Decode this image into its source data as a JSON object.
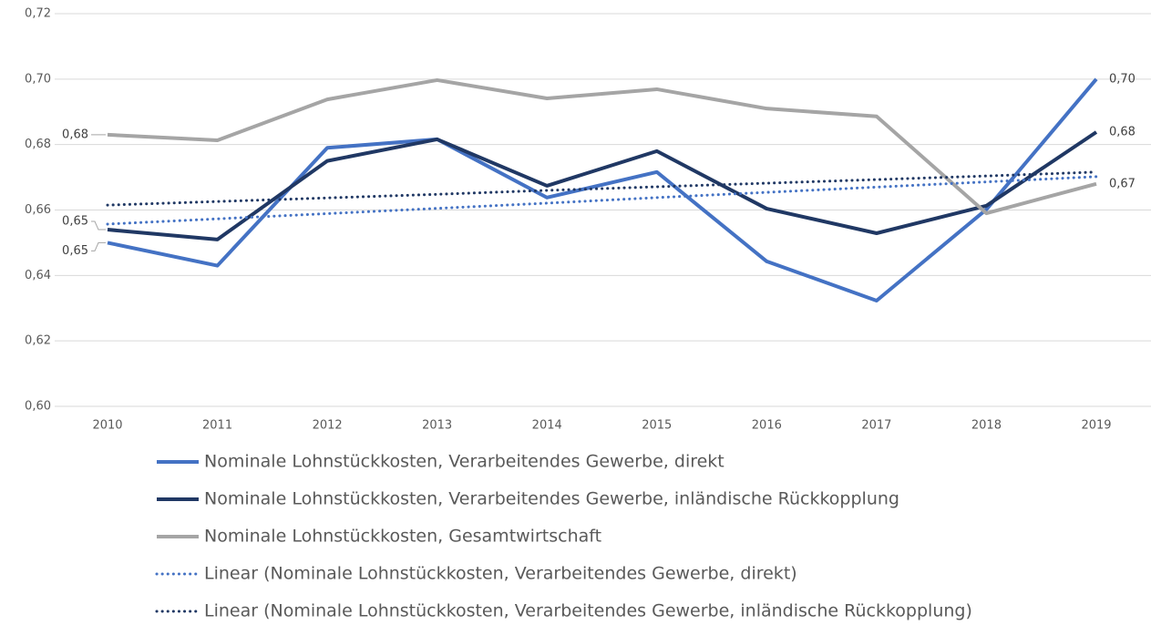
{
  "chart_data": {
    "type": "line",
    "categories": [
      "2010",
      "2011",
      "2012",
      "2013",
      "2014",
      "2015",
      "2016",
      "2017",
      "2018",
      "2019"
    ],
    "series": [
      {
        "name": "Nominale Lohnstückkosten, Verarbeitendes Gewerbe, direkt",
        "color": "#4472c4",
        "style": "solid",
        "values": [
          0.65,
          0.643,
          0.679,
          0.6816,
          0.6638,
          0.6716,
          0.6443,
          0.6323,
          0.6602,
          0.7
        ],
        "value_labels": [
          "0,65",
          null,
          null,
          null,
          null,
          null,
          null,
          null,
          null,
          "0,70"
        ]
      },
      {
        "name": "Nominale Lohnstückkosten, Verarbeitendes Gewerbe, inländische Rückkopplung",
        "color": "#203864",
        "style": "solid",
        "values": [
          0.654,
          0.651,
          0.675,
          0.6816,
          0.6674,
          0.678,
          0.6604,
          0.6529,
          0.6613,
          0.6838
        ],
        "value_labels": [
          "0,65",
          null,
          null,
          null,
          null,
          null,
          null,
          null,
          null,
          "0,68"
        ]
      },
      {
        "name": "Nominale Lohnstückkosten, Gesamtwirtschaft",
        "color": "#a5a5a5",
        "style": "solid",
        "values": [
          0.683,
          0.6813,
          0.6938,
          0.6997,
          0.6941,
          0.6969,
          0.691,
          0.6886,
          0.659,
          0.668
        ],
        "value_labels": [
          "0,68",
          null,
          null,
          null,
          null,
          null,
          null,
          null,
          null,
          "0,67"
        ]
      },
      {
        "name": "Linear (Nominale Lohnstückkosten, Verarbeitendes Gewerbe, direkt)",
        "color": "#4472c4",
        "style": "dotted",
        "values": [
          0.6557,
          0.6573,
          0.6589,
          0.6605,
          0.6621,
          0.6638,
          0.6654,
          0.667,
          0.6686,
          0.6702
        ]
      },
      {
        "name": "Linear (Nominale Lohnstückkosten, Verarbeitendes Gewerbe, inländische Rückkopplung)",
        "color": "#203864",
        "style": "dotted",
        "values": [
          0.6615,
          0.6626,
          0.6637,
          0.6648,
          0.666,
          0.6671,
          0.6682,
          0.6693,
          0.6704,
          0.6716
        ]
      }
    ],
    "ylim": [
      0.6,
      0.72
    ],
    "yticks": [
      {
        "value": 0.6,
        "label": "0,60"
      },
      {
        "value": 0.62,
        "label": "0,62"
      },
      {
        "value": 0.64,
        "label": "0,64"
      },
      {
        "value": 0.66,
        "label": "0,66"
      },
      {
        "value": 0.68,
        "label": "0,68"
      },
      {
        "value": 0.7,
        "label": "0,70"
      },
      {
        "value": 0.72,
        "label": "0,72"
      }
    ],
    "grid": true,
    "legend": "bottom"
  }
}
